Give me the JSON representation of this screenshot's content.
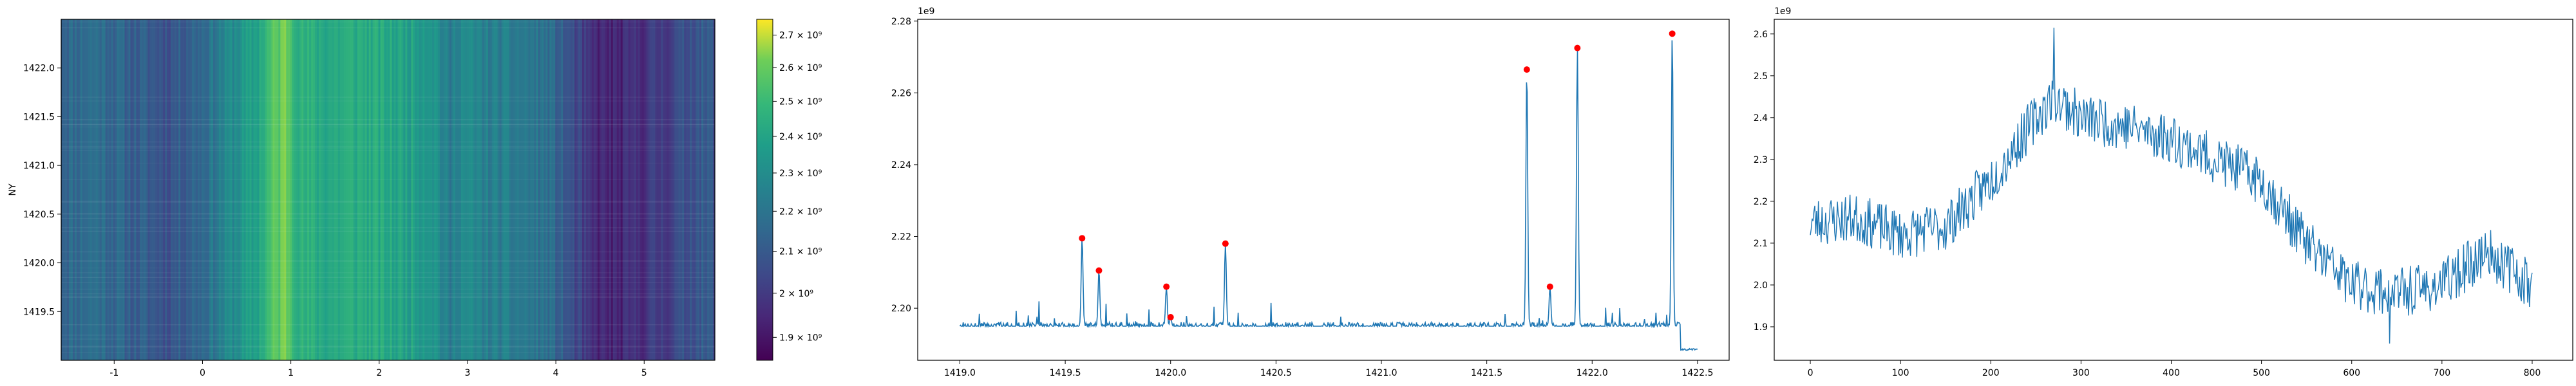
{
  "chart_data": [
    {
      "type": "heatmap",
      "title": "",
      "xlabel": "",
      "ylabel": "NY",
      "xlim": [
        -1.6,
        5.8
      ],
      "ylim": [
        1419.0,
        1422.5
      ],
      "x_ticks": [
        "-1",
        "0",
        "1",
        "2",
        "3",
        "4",
        "5"
      ],
      "y_ticks": [
        "1419.5",
        "1420.0",
        "1420.5",
        "1421.0",
        "1421.5",
        "1422.0"
      ],
      "colormap": "viridis",
      "colorbar": {
        "scale": "log",
        "range": [
          1850000000.0,
          2750000000.0
        ],
        "tick_labels": [
          "1.9 × 10⁹",
          "2 × 10⁹",
          "2.1 × 10⁹",
          "2.2 × 10⁹",
          "2.3 × 10⁹",
          "2.4 × 10⁹",
          "2.5 × 10⁹",
          "2.6 × 10⁹",
          "2.7 × 10⁹"
        ],
        "tick_values": [
          1900000000.0,
          2000000000.0,
          2100000000.0,
          2200000000.0,
          2300000000.0,
          2400000000.0,
          2500000000.0,
          2600000000.0,
          2700000000.0
        ]
      },
      "column_profile": {
        "x": [
          -1.6,
          -1.2,
          -0.8,
          -0.4,
          0.0,
          0.3,
          0.6,
          0.8,
          0.95,
          1.1,
          1.4,
          1.8,
          2.2,
          2.6,
          2.8,
          2.9,
          3.2,
          3.6,
          3.9,
          4.2,
          4.4,
          4.7,
          5.0,
          5.3,
          5.6,
          5.8
        ],
        "values": [
          2150000000.0,
          2180000000.0,
          2120000000.0,
          2080000000.0,
          2160000000.0,
          2280000000.0,
          2380000000.0,
          2550000000.0,
          2620000000.0,
          2450000000.0,
          2420000000.0,
          2440000000.0,
          2400000000.0,
          2360000000.0,
          2200000000.0,
          2300000000.0,
          2240000000.0,
          2220000000.0,
          2180000000.0,
          2050000000.0,
          1950000000.0,
          1930000000.0,
          1980000000.0,
          2020000000.0,
          2100000000.0,
          2080000000.0
        ]
      },
      "grid": false
    },
    {
      "type": "line",
      "title": "",
      "xlabel": "",
      "ylabel": "",
      "offset_text": "1e9",
      "xlim": [
        1418.8,
        1422.65
      ],
      "ylim": [
        2185500000.0,
        2280500000.0
      ],
      "x_ticks": [
        "1419.0",
        "1419.5",
        "1420.0",
        "1420.5",
        "1421.0",
        "1421.5",
        "1422.0",
        "1422.5"
      ],
      "y_ticks": [
        "2.20",
        "2.22",
        "2.24",
        "2.26",
        "2.28"
      ],
      "series": [
        {
          "color": "#1f77b4",
          "x_start": 1419.0,
          "x_end": 1422.5,
          "baseline": 2195000000.0,
          "peaks": [
            {
              "x": 1419.58,
              "y": 2219500000.0
            },
            {
              "x": 1419.66,
              "y": 2210500000.0
            },
            {
              "x": 1419.98,
              "y": 2206000000.0
            },
            {
              "x": 1420.0,
              "y": 2197500000.0
            },
            {
              "x": 1420.26,
              "y": 2218000000.0
            },
            {
              "x": 1421.69,
              "y": 2266500000.0
            },
            {
              "x": 1421.8,
              "y": 2206000000.0
            },
            {
              "x": 1421.93,
              "y": 2272500000.0
            },
            {
              "x": 1422.38,
              "y": 2276500000.0
            }
          ]
        }
      ],
      "markers": {
        "color": "#ff0000",
        "points": [
          {
            "x": 1419.58,
            "y": 2219500000.0
          },
          {
            "x": 1419.66,
            "y": 2210500000.0
          },
          {
            "x": 1419.98,
            "y": 2206000000.0
          },
          {
            "x": 1420.0,
            "y": 2197500000.0
          },
          {
            "x": 1420.26,
            "y": 2218000000.0
          },
          {
            "x": 1421.69,
            "y": 2266500000.0
          },
          {
            "x": 1421.8,
            "y": 2206000000.0
          },
          {
            "x": 1421.93,
            "y": 2272500000.0
          },
          {
            "x": 1422.38,
            "y": 2276500000.0
          }
        ]
      },
      "grid": false
    },
    {
      "type": "line",
      "title": "",
      "xlabel": "",
      "ylabel": "",
      "offset_text": "1e9",
      "xlim": [
        -40,
        845
      ],
      "ylim": [
        1820000000.0,
        2635000000.0
      ],
      "x_ticks": [
        "0",
        "100",
        "200",
        "300",
        "400",
        "500",
        "600",
        "700",
        "800"
      ],
      "y_ticks": [
        "1.9",
        "2.0",
        "2.1",
        "2.2",
        "2.3",
        "2.4",
        "2.5",
        "2.6"
      ],
      "series": [
        {
          "color": "#1f77b4",
          "x_start": 0,
          "x_end": 800,
          "trend": {
            "x": [
              0,
              50,
              100,
              150,
              200,
              250,
              270,
              300,
              350,
              400,
              450,
              500,
              550,
              600,
              650,
              700,
              750,
              800
            ],
            "y": [
              2150000000.0,
              2160000000.0,
              2120000000.0,
              2140000000.0,
              2250000000.0,
              2400000000.0,
              2450000000.0,
              2400000000.0,
              2380000000.0,
              2350000000.0,
              2300000000.0,
              2250000000.0,
              2100000000.0,
              2000000000.0,
              1980000000.0,
              2000000000.0,
              2080000000.0,
              2000000000.0
            ]
          },
          "noise": 60000000.0,
          "extremes": {
            "max": {
              "x": 270,
              "y": 2615000000.0
            },
            "min": {
              "x": 642,
              "y": 1860000000.0
            }
          }
        }
      ],
      "grid": false
    }
  ]
}
